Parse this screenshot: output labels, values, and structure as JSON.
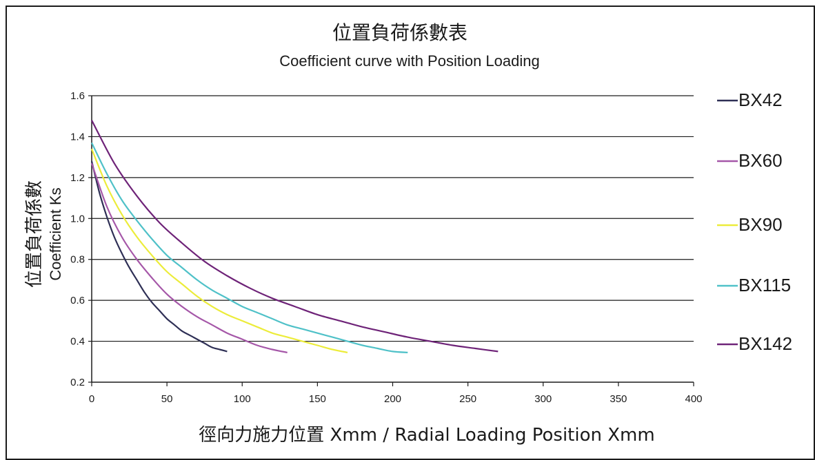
{
  "chart_data": {
    "type": "line",
    "title": "位置負荷係數表",
    "subtitle": "Coefficient curve with Position Loading",
    "xlabel": "徑向力施力位置 Xmm / Radial Loading Position Xmm",
    "ylabel_cjk": "位置負荷係數",
    "ylabel": "Coefficient Ks",
    "xlim": [
      0,
      400
    ],
    "ylim": [
      0.2,
      1.6
    ],
    "x_ticks": [
      "0",
      "50",
      "100",
      "150",
      "200",
      "250",
      "300",
      "350",
      "400"
    ],
    "y_ticks": [
      "0.2",
      "0.4",
      "0.6",
      "0.8",
      "1.0",
      "1.2",
      "1.4",
      "1.6"
    ],
    "grid": "horizontal",
    "legend_position": "right",
    "series": [
      {
        "name": "BX42",
        "color": "#2e2f55",
        "x": [
          0,
          5,
          10,
          15,
          20,
          25,
          30,
          35,
          40,
          45,
          50,
          55,
          60,
          65,
          70,
          75,
          80,
          85,
          90
        ],
        "y": [
          1.28,
          1.13,
          1.01,
          0.91,
          0.83,
          0.76,
          0.7,
          0.64,
          0.59,
          0.55,
          0.51,
          0.48,
          0.45,
          0.43,
          0.41,
          0.39,
          0.37,
          0.36,
          0.35
        ]
      },
      {
        "name": "BX60",
        "color": "#a557a8",
        "x": [
          0,
          10,
          20,
          30,
          40,
          50,
          60,
          70,
          80,
          90,
          100,
          110,
          120,
          130
        ],
        "y": [
          1.27,
          1.06,
          0.91,
          0.8,
          0.71,
          0.63,
          0.57,
          0.52,
          0.48,
          0.44,
          0.41,
          0.38,
          0.36,
          0.345
        ]
      },
      {
        "name": "BX90",
        "color": "#ecec3a",
        "x": [
          0,
          10,
          20,
          30,
          40,
          50,
          60,
          70,
          80,
          90,
          100,
          110,
          120,
          130,
          140,
          150,
          160,
          170
        ],
        "y": [
          1.34,
          1.16,
          1.02,
          0.91,
          0.82,
          0.74,
          0.68,
          0.62,
          0.57,
          0.53,
          0.5,
          0.47,
          0.44,
          0.42,
          0.4,
          0.38,
          0.36,
          0.345
        ]
      },
      {
        "name": "BX115",
        "color": "#4fc1c8",
        "x": [
          0,
          10,
          20,
          30,
          40,
          50,
          60,
          70,
          80,
          90,
          100,
          110,
          120,
          130,
          140,
          150,
          160,
          170,
          180,
          190,
          200,
          210
        ],
        "y": [
          1.37,
          1.22,
          1.09,
          0.99,
          0.9,
          0.82,
          0.76,
          0.7,
          0.65,
          0.61,
          0.57,
          0.54,
          0.51,
          0.48,
          0.46,
          0.44,
          0.42,
          0.4,
          0.38,
          0.365,
          0.35,
          0.345
        ]
      },
      {
        "name": "BX142",
        "color": "#6e2378",
        "x": [
          0,
          15,
          30,
          45,
          60,
          75,
          90,
          105,
          120,
          135,
          150,
          165,
          180,
          195,
          210,
          225,
          240,
          255,
          270
        ],
        "y": [
          1.48,
          1.27,
          1.11,
          0.98,
          0.88,
          0.79,
          0.72,
          0.66,
          0.61,
          0.57,
          0.53,
          0.5,
          0.47,
          0.445,
          0.42,
          0.4,
          0.38,
          0.365,
          0.35
        ]
      }
    ]
  }
}
